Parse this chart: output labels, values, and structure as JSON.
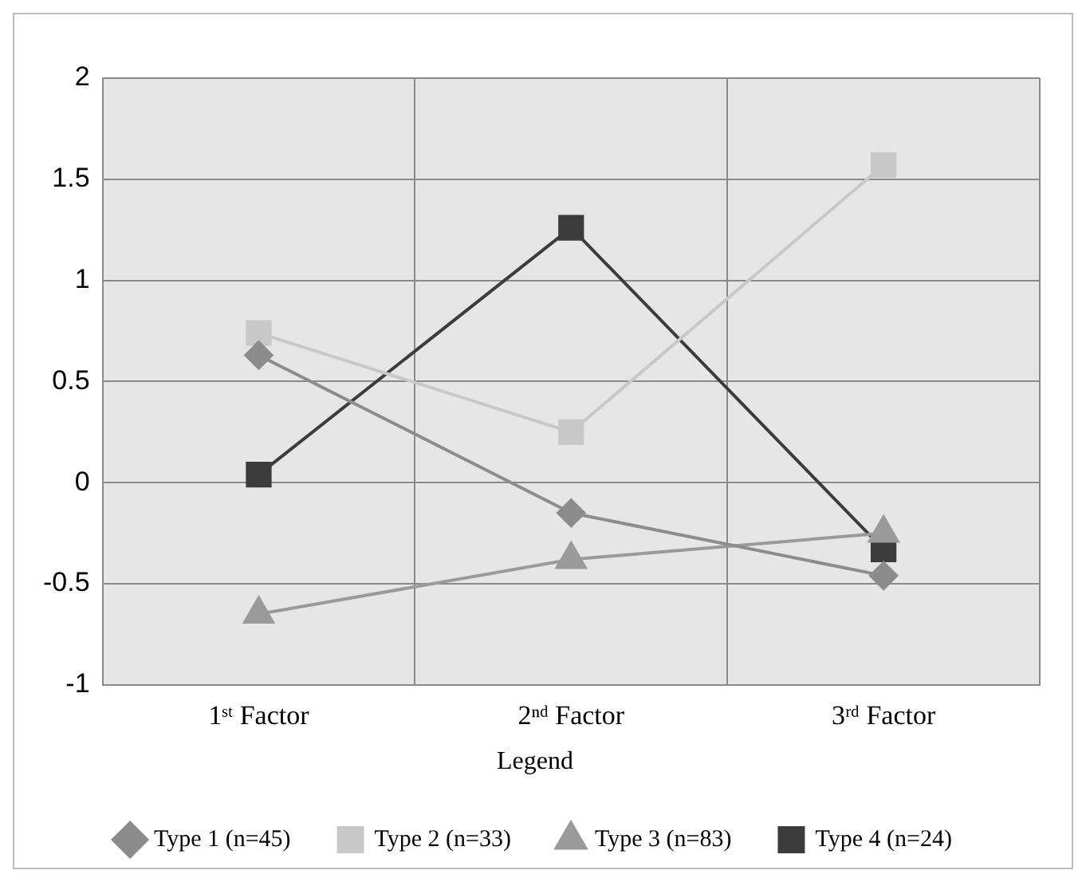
{
  "chart_data": {
    "type": "line",
    "categories": [
      "1ˢᵗ Factor",
      "2ⁿᵈ Factor",
      "3ʳᵈ Factor"
    ],
    "series": [
      {
        "name": "Type 1 (n=45)",
        "color": "#8c8c8c",
        "marker": "diamond",
        "values": [
          0.63,
          -0.15,
          -0.46
        ]
      },
      {
        "name": "Type 2 (n=33)",
        "color": "#c8c8c8",
        "marker": "square",
        "values": [
          0.74,
          0.25,
          1.57
        ]
      },
      {
        "name": "Type 3 (n=83)",
        "color": "#9a9a9a",
        "marker": "triangle",
        "values": [
          -0.65,
          -0.38,
          -0.25
        ]
      },
      {
        "name": "Type 4 (n=24)",
        "color": "#3c3c3c",
        "marker": "square",
        "values": [
          0.04,
          1.26,
          -0.33
        ]
      }
    ],
    "ylim": [
      -1,
      2
    ],
    "yticks": [
      -1,
      -0.5,
      0,
      0.5,
      1,
      1.5,
      2
    ],
    "grid": true,
    "legend": "bottom",
    "legend_title": "Legend"
  }
}
